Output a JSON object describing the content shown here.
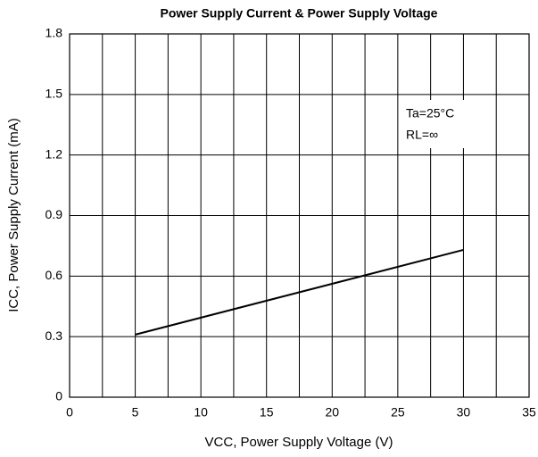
{
  "chart_data": {
    "type": "line",
    "title": "Power  Supply Current & Power Supply Voltage",
    "xlabel": "VCC, Power Supply Voltage (V)",
    "ylabel": "ICC, Power Supply Current (mA)",
    "annotations": [
      "Ta=25°C",
      "RL=∞"
    ],
    "x": [
      5,
      30
    ],
    "series": [
      {
        "color": "#000000",
        "values": [
          0.31,
          0.73
        ]
      }
    ],
    "xlim": [
      0,
      35
    ],
    "xticks": [
      0,
      5,
      10,
      15,
      20,
      25,
      30,
      35
    ],
    "xgrid": [
      2.5,
      7.5,
      12.5,
      17.5,
      22.5,
      27.5,
      32.5
    ],
    "ylim": [
      0,
      1.8
    ],
    "yticks": [
      0,
      0.3,
      0.6,
      0.9,
      1.2,
      1.5,
      1.8
    ],
    "grid": true
  }
}
